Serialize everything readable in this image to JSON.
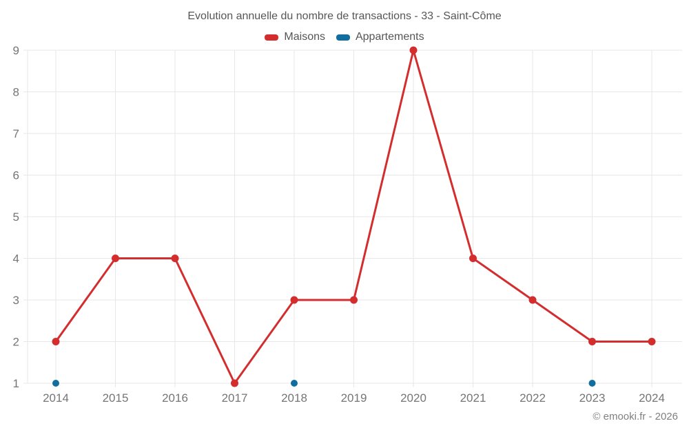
{
  "chart": {
    "title": "Evolution annuelle du nombre de transactions - 33 - Saint-Côme",
    "credits": "© emooki.fr - 2026",
    "colors": {
      "maisons": "#d32d2e",
      "appartements": "#126e9f",
      "grid": "#e7e7e7",
      "axis_label": "#757575"
    }
  },
  "legend": {
    "items": [
      {
        "label": "Maisons"
      },
      {
        "label": "Appartements"
      }
    ]
  },
  "chart_data": {
    "type": "line",
    "title": "Evolution annuelle du nombre de transactions - 33 - Saint-Côme",
    "x": [
      2014,
      2015,
      2016,
      2017,
      2018,
      2019,
      2020,
      2021,
      2022,
      2023,
      2024
    ],
    "series": [
      {
        "name": "Maisons",
        "color": "#d32d2e",
        "values": [
          2,
          4,
          4,
          1,
          3,
          3,
          9,
          4,
          3,
          2,
          2
        ]
      },
      {
        "name": "Appartements",
        "color": "#126e9f",
        "values": [
          1,
          null,
          null,
          null,
          1,
          null,
          null,
          null,
          null,
          1,
          null
        ]
      }
    ],
    "ylim": [
      1,
      9
    ],
    "yticks": [
      1,
      2,
      3,
      4,
      5,
      6,
      7,
      8,
      9
    ],
    "grid": true,
    "legend_position": "top",
    "xlabel": "",
    "ylabel": ""
  }
}
